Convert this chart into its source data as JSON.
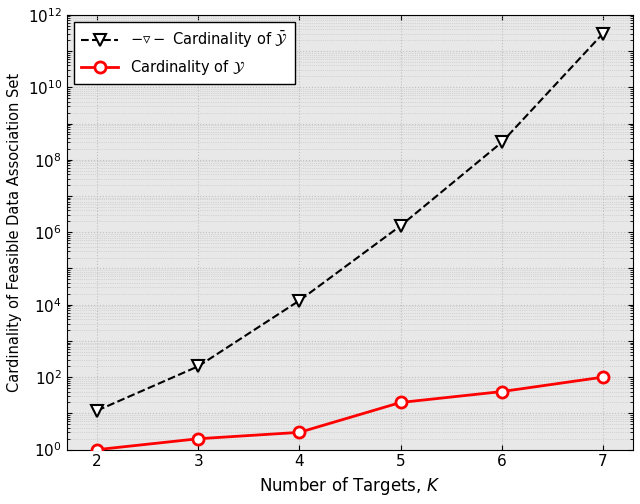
{
  "x": [
    2,
    3,
    4,
    5,
    6,
    7
  ],
  "y_bar": [
    12,
    200,
    13000,
    1500000,
    300000000,
    300000000000
  ],
  "y_cal": [
    1,
    2,
    3,
    20,
    40,
    100
  ],
  "xlabel": "Number of Targets, $K$",
  "ylabel": "Cardinality of Feasible Data Association Set",
  "xlim": [
    1.7,
    7.3
  ],
  "ymin": 1,
  "ymax": 1000000000000.0,
  "line1_color": "black",
  "line2_color": "red",
  "bg_color": "#e8e8e8",
  "grid_color": "#c8c8c8",
  "fig_bg": "#ffffff"
}
